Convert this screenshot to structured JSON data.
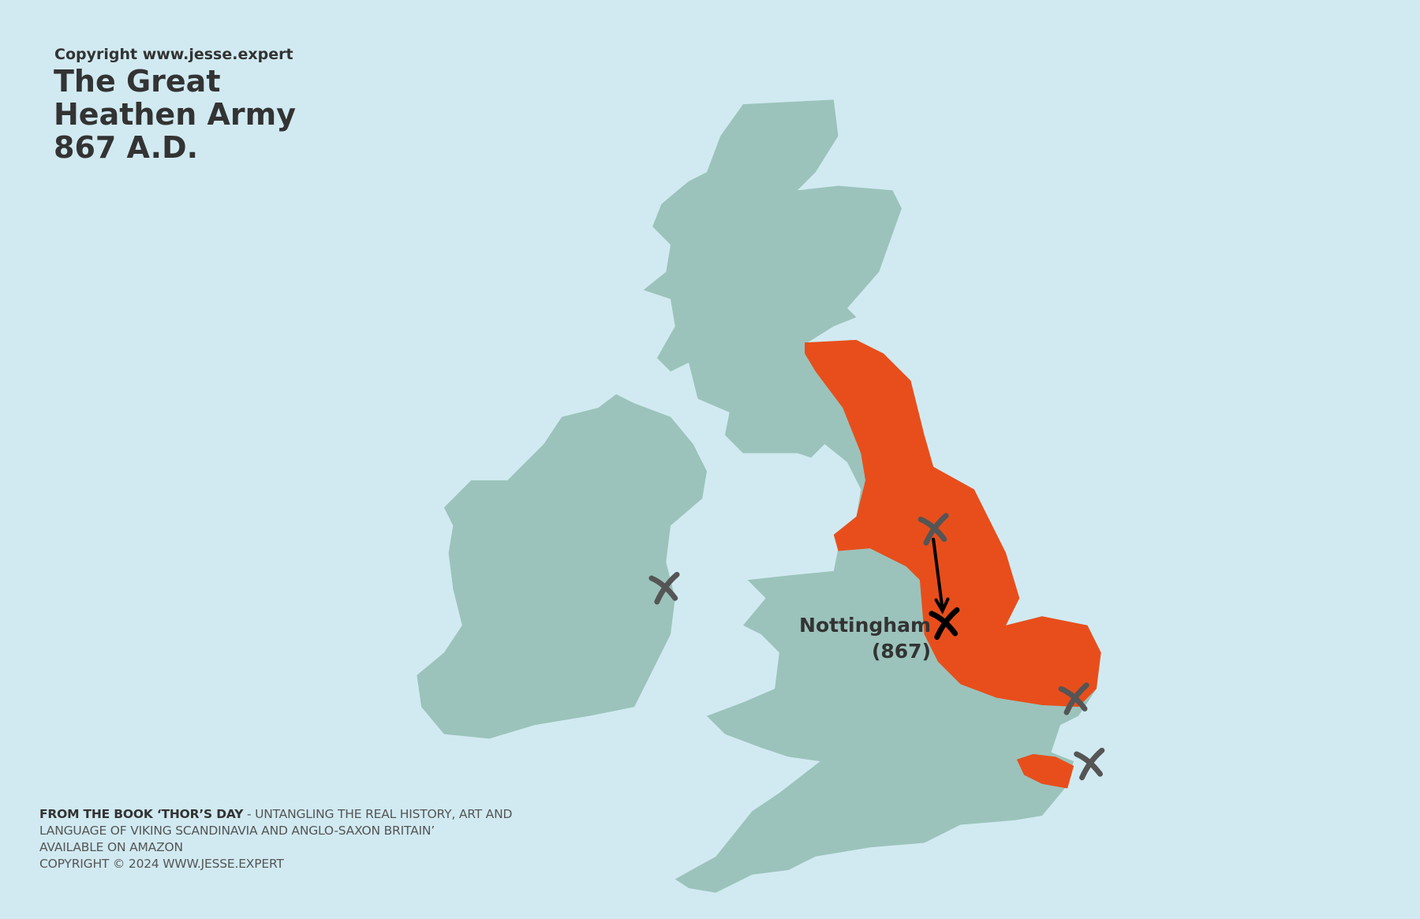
{
  "header": {
    "copyright": "Copyright www.jesse.expert",
    "title_lines": [
      "The Great",
      "Heathen Army",
      "867 A.D."
    ]
  },
  "footer": {
    "book_bold": "FROM THE BOOK ‘THOR’S DAY",
    "book_rest": " - UNTANGLING THE REAL HISTORY, ART AND LANGUAGE OF VIKING SCANDINAVIA AND ANGLO-SAXON BRITAIN’",
    "availability": "AVAILABLE ON AMAZON",
    "copyright": "COPYRIGHT © 2024 WWW.JESSE.EXPERT"
  },
  "map": {
    "labels": {
      "nottingham_name": "Nottingham",
      "nottingham_year": "(867)"
    },
    "markers": [
      {
        "name": "ireland-marker",
        "color": "#555555"
      },
      {
        "name": "york-marker",
        "color": "#555555"
      },
      {
        "name": "nottingham-marker",
        "color": "#000000"
      },
      {
        "name": "east-anglia-marker",
        "color": "#555555"
      },
      {
        "name": "kent-marker",
        "color": "#555555"
      }
    ],
    "route": "York to Nottingham",
    "colors": {
      "sea": "#d1eaf1",
      "land": "#9bc3bb",
      "viking_controlled": "#e84e1b",
      "text": "#333333"
    }
  }
}
